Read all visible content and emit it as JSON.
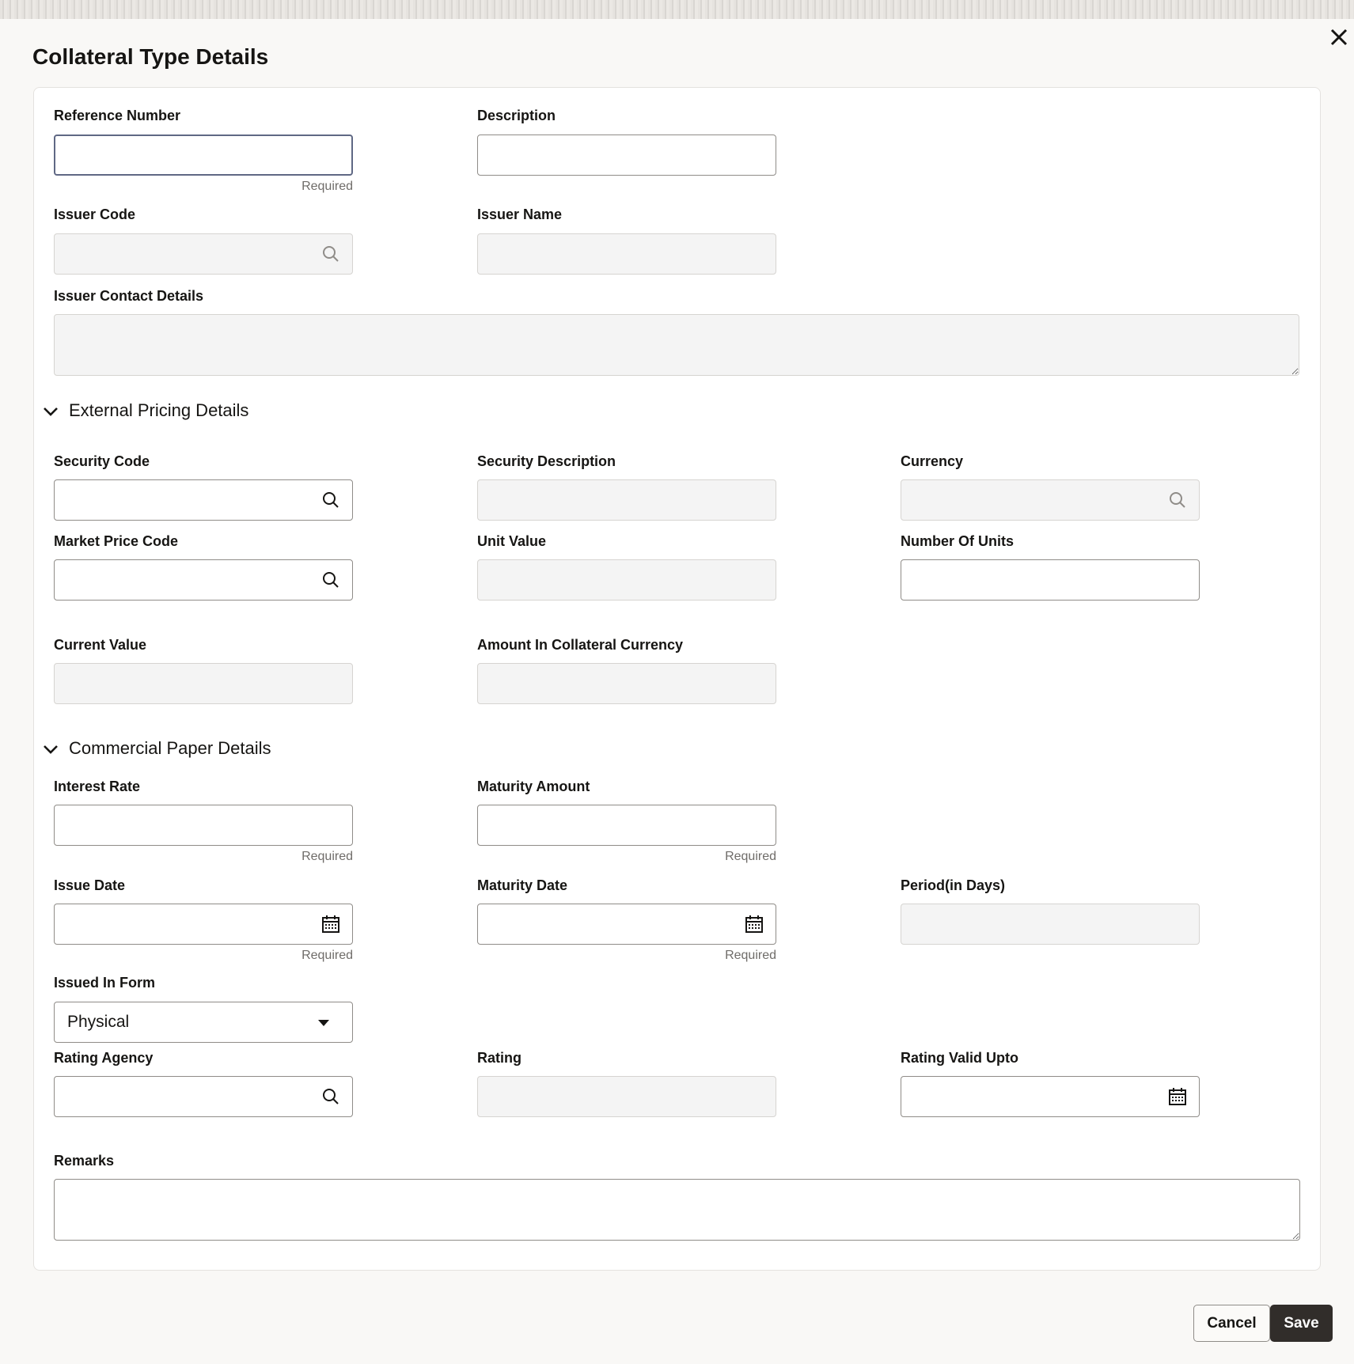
{
  "dialog": {
    "title": "Collateral Type Details",
    "close_icon": "close-icon"
  },
  "fields": [
    {
      "key": "reference-number",
      "label": "Reference Number",
      "type": "text",
      "disabled": false,
      "focused": true,
      "helper": "Required",
      "value": ""
    },
    {
      "key": "description",
      "label": "Description",
      "type": "text",
      "disabled": false,
      "value": ""
    },
    {
      "key": "issuer-code",
      "label": "Issuer Code",
      "type": "search",
      "disabled": true,
      "value": ""
    },
    {
      "key": "issuer-name",
      "label": "Issuer Name",
      "type": "text",
      "disabled": true,
      "value": ""
    },
    {
      "key": "issuer-contact-details",
      "label": "Issuer Contact Details",
      "type": "textarea",
      "disabled": true,
      "value": ""
    },
    {
      "key": "security-code",
      "label": "Security Code",
      "type": "search",
      "disabled": false,
      "value": ""
    },
    {
      "key": "security-description",
      "label": "Security Description",
      "type": "text",
      "disabled": true,
      "value": ""
    },
    {
      "key": "currency",
      "label": "Currency",
      "type": "search",
      "disabled": true,
      "value": ""
    },
    {
      "key": "market-price-code",
      "label": "Market Price Code",
      "type": "search",
      "disabled": false,
      "value": ""
    },
    {
      "key": "unit-value",
      "label": "Unit Value",
      "type": "text",
      "disabled": true,
      "value": ""
    },
    {
      "key": "number-of-units",
      "label": "Number Of Units",
      "type": "text",
      "disabled": false,
      "value": ""
    },
    {
      "key": "current-value",
      "label": "Current Value",
      "type": "text",
      "disabled": true,
      "value": ""
    },
    {
      "key": "amount-in-collateral-currency",
      "label": "Amount In Collateral Currency",
      "type": "text",
      "disabled": true,
      "value": ""
    },
    {
      "key": "interest-rate",
      "label": "Interest Rate",
      "type": "text",
      "disabled": false,
      "helper": "Required",
      "value": ""
    },
    {
      "key": "maturity-amount",
      "label": "Maturity Amount",
      "type": "text",
      "disabled": false,
      "helper": "Required",
      "value": ""
    },
    {
      "key": "issue-date",
      "label": "Issue Date",
      "type": "date",
      "disabled": false,
      "helper": "Required",
      "value": ""
    },
    {
      "key": "maturity-date",
      "label": "Maturity Date",
      "type": "date",
      "disabled": false,
      "helper": "Required",
      "value": ""
    },
    {
      "key": "period-in-days",
      "label": "Period(in Days)",
      "type": "text",
      "disabled": true,
      "value": ""
    },
    {
      "key": "issued-in-form",
      "label": "Issued In Form",
      "type": "select",
      "disabled": false,
      "value": "Physical"
    },
    {
      "key": "rating-agency",
      "label": "Rating Agency",
      "type": "search",
      "disabled": false,
      "value": ""
    },
    {
      "key": "rating",
      "label": "Rating",
      "type": "text",
      "disabled": true,
      "value": ""
    },
    {
      "key": "rating-valid-upto",
      "label": "Rating Valid Upto",
      "type": "date",
      "disabled": false,
      "value": ""
    },
    {
      "key": "remarks",
      "label": "Remarks",
      "type": "textarea",
      "disabled": false,
      "value": ""
    }
  ],
  "sections": [
    {
      "label": "External Pricing Details",
      "expanded": true
    },
    {
      "label": "Commercial Paper Details",
      "expanded": true
    }
  ],
  "footer": {
    "cancel_label": "Cancel",
    "save_label": "Save"
  },
  "colors": {
    "primary_button": "#312d2a",
    "focus_border": "#5f6884",
    "disabled_bg": "#f4f4f4"
  }
}
